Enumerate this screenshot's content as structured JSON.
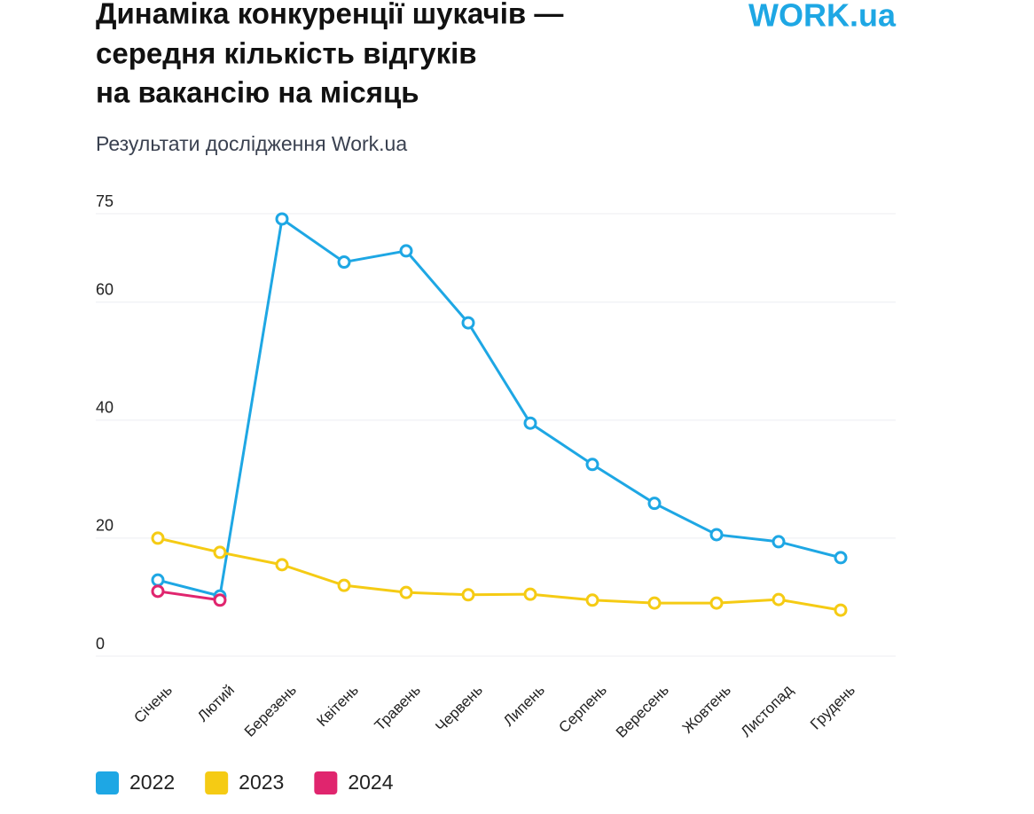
{
  "chart_data": {
    "type": "line",
    "title": [
      "Динаміка конкуренції шукачів —",
      "середня кількість відгуків",
      "на вакансію на місяць"
    ],
    "subtitle": "Результати дослідження Work.ua",
    "logo": "WORK.ua",
    "categories": [
      "Січень",
      "Лютий",
      "Березень",
      "Квітень",
      "Травень",
      "Червень",
      "Липень",
      "Серпень",
      "Вересень",
      "Жовтень",
      "Листопад",
      "Грудень"
    ],
    "series": [
      {
        "name": "2022",
        "color": "#1ea7e4",
        "values": [
          12.9,
          10.2,
          74.1,
          66.8,
          68.7,
          56.5,
          39.5,
          32.5,
          25.9,
          20.6,
          19.4,
          16.7
        ]
      },
      {
        "name": "2023",
        "color": "#f5cb14",
        "values": [
          20,
          17.6,
          15.5,
          12,
          10.8,
          10.4,
          10.5,
          9.5,
          9,
          9,
          9.6,
          7.8
        ]
      },
      {
        "name": "2024",
        "color": "#e0256e",
        "values": [
          11,
          9.5,
          null,
          null,
          null,
          null,
          null,
          null,
          null,
          null,
          null,
          null
        ]
      }
    ],
    "ylim": [
      0,
      75
    ],
    "yticks": [
      0,
      20,
      40,
      60,
      75
    ],
    "grid": true,
    "legend": "bottom"
  }
}
